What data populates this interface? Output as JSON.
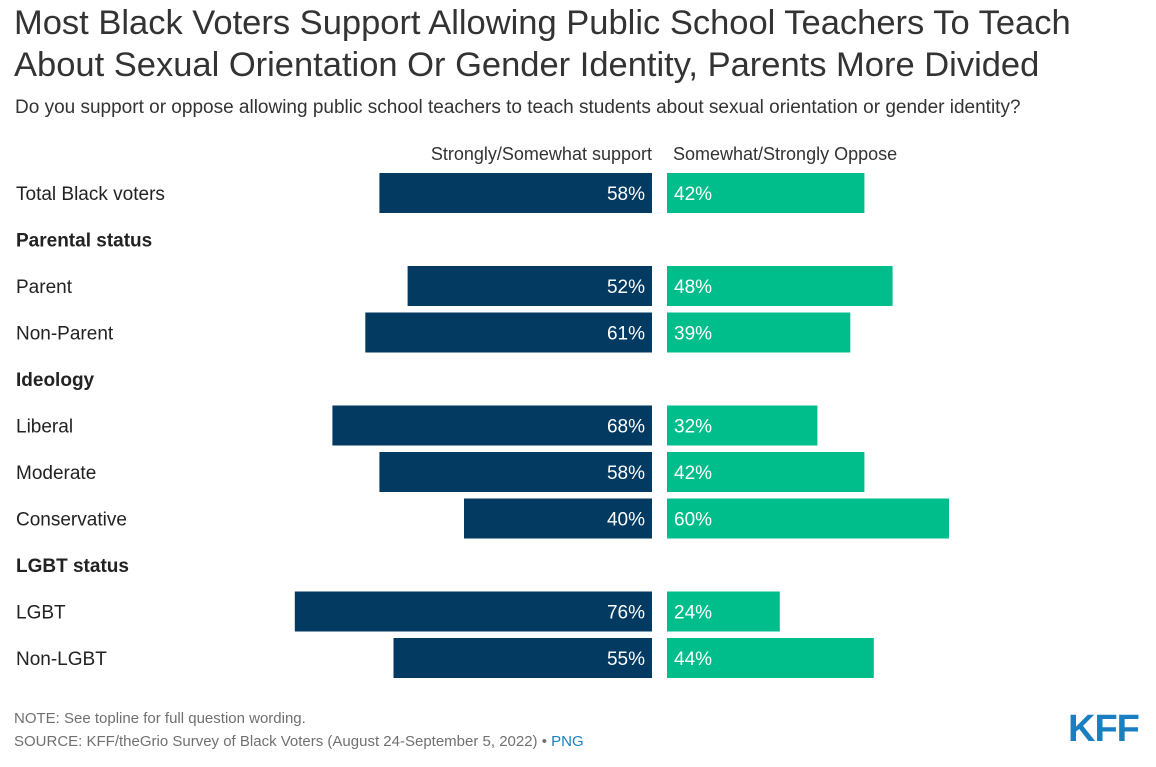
{
  "title": "Most Black Voters Support Allowing Public School Teachers To Teach About Sexual Orientation Or Gender Identity, Parents More Divided",
  "subtitle": "Do you support or oppose allowing public school teachers to teach students about sexual orientation or gender identity?",
  "footer": {
    "note": "NOTE: See topline for full question wording.",
    "source": "SOURCE: KFF/theGrio Survey of Black Voters (August 24-September 5, 2022) •",
    "png_link": "PNG"
  },
  "logo": "KFF",
  "colors": {
    "support": "#023a62",
    "oppose": "#00bd8c"
  },
  "chart_data": {
    "type": "bar",
    "orientation": "horizontal-diverging",
    "unit": "%",
    "series": [
      {
        "name": "Strongly/Somewhat support",
        "color": "#023a62"
      },
      {
        "name": "Somewhat/Strongly Oppose",
        "color": "#00bd8c"
      }
    ],
    "rows": [
      {
        "label": "Total Black voters",
        "header": false,
        "support": 58,
        "oppose": 42
      },
      {
        "label": "Parental status",
        "header": true
      },
      {
        "label": "Parent",
        "header": false,
        "support": 52,
        "oppose": 48
      },
      {
        "label": "Non-Parent",
        "header": false,
        "support": 61,
        "oppose": 39
      },
      {
        "label": "Ideology",
        "header": true
      },
      {
        "label": "Liberal",
        "header": false,
        "support": 68,
        "oppose": 32
      },
      {
        "label": "Moderate",
        "header": false,
        "support": 58,
        "oppose": 42
      },
      {
        "label": "Conservative",
        "header": false,
        "support": 40,
        "oppose": 60
      },
      {
        "label": "LGBT status",
        "header": true
      },
      {
        "label": "LGBT",
        "header": false,
        "support": 76,
        "oppose": 24
      },
      {
        "label": "Non-LGBT",
        "header": false,
        "support": 55,
        "oppose": 44
      }
    ]
  }
}
